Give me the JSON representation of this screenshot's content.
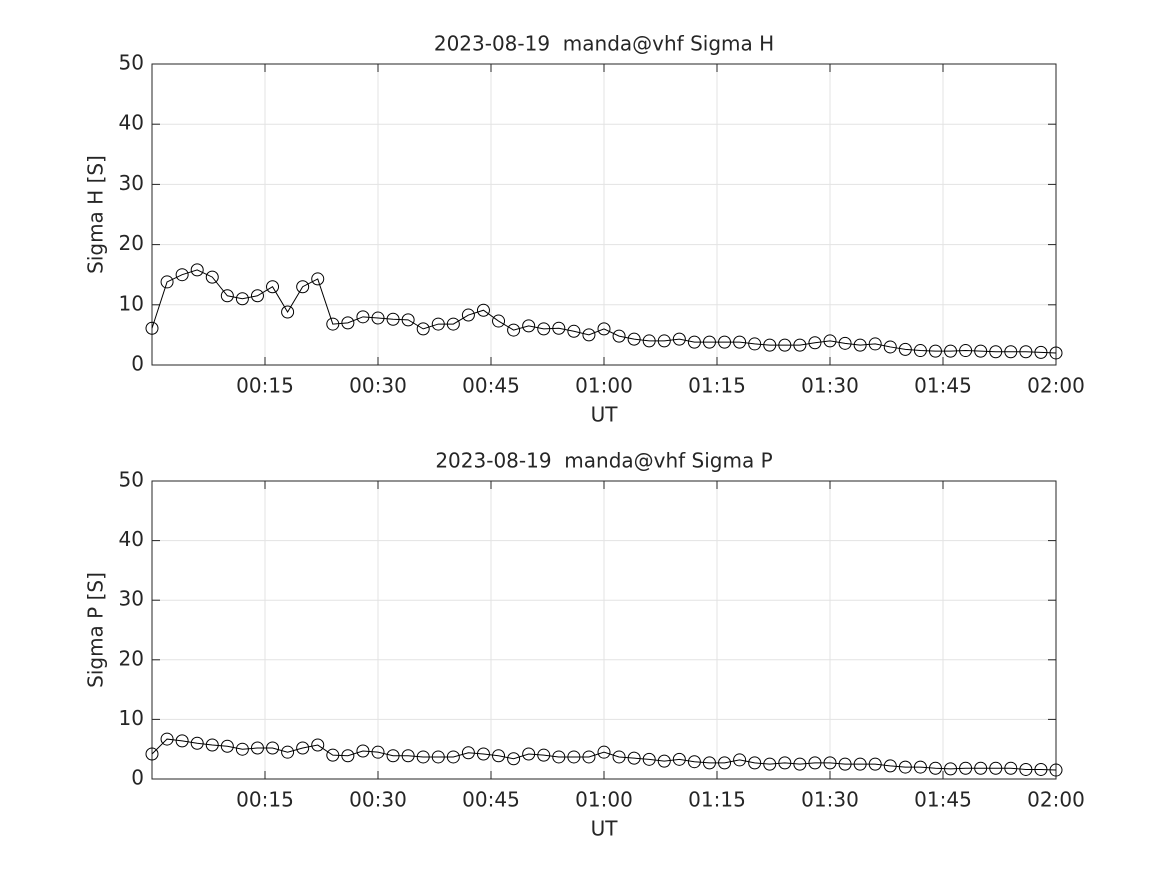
{
  "chart_data": [
    {
      "type": "line",
      "title": "2023-08-19  manda@vhf Sigma H",
      "x_label": "UT",
      "y_label": "Sigma H [S]",
      "color": "#000000",
      "grid": true,
      "x": [
        0,
        2,
        4,
        6,
        8,
        10,
        12,
        14,
        16,
        18,
        20,
        22,
        24,
        26,
        28,
        30,
        32,
        34,
        36,
        38,
        40,
        42,
        44,
        46,
        48,
        50,
        52,
        54,
        56,
        58,
        60,
        62,
        64,
        66,
        68,
        70,
        72,
        74,
        76,
        78,
        80,
        82,
        84,
        86,
        88,
        90,
        92,
        94,
        96,
        98,
        100,
        102,
        104,
        106,
        108,
        110,
        112,
        114,
        116,
        118,
        120
      ],
      "values": [
        6.1,
        13.8,
        15.0,
        15.8,
        14.6,
        11.5,
        11.0,
        11.5,
        13.0,
        8.8,
        13.0,
        14.3,
        6.8,
        7.0,
        8.0,
        7.8,
        7.6,
        7.5,
        6.0,
        6.8,
        6.8,
        8.3,
        9.1,
        7.3,
        5.8,
        6.5,
        6.0,
        6.1,
        5.6,
        5.0,
        6.0,
        4.8,
        4.3,
        4.0,
        4.0,
        4.3,
        3.8,
        3.8,
        3.8,
        3.8,
        3.5,
        3.3,
        3.3,
        3.3,
        3.7,
        4.0,
        3.6,
        3.3,
        3.5,
        3.0,
        2.6,
        2.4,
        2.3,
        2.3,
        2.4,
        2.3,
        2.2,
        2.2,
        2.2,
        2.1,
        2.0
      ],
      "xlim": [
        0,
        120
      ],
      "xticks": [
        {
          "value": 15,
          "label": "00:15"
        },
        {
          "value": 30,
          "label": "00:30"
        },
        {
          "value": 45,
          "label": "00:45"
        },
        {
          "value": 60,
          "label": "01:00"
        },
        {
          "value": 75,
          "label": "01:15"
        },
        {
          "value": 90,
          "label": "01:30"
        },
        {
          "value": 105,
          "label": "01:45"
        },
        {
          "value": 120,
          "label": "02:00"
        }
      ],
      "ylim": [
        0,
        50
      ],
      "yticks": [
        0,
        10,
        20,
        30,
        40,
        50
      ]
    },
    {
      "type": "line",
      "title": "2023-08-19  manda@vhf Sigma P",
      "x_label": "UT",
      "y_label": "Sigma P [S]",
      "color": "#000000",
      "grid": true,
      "x": [
        0,
        2,
        4,
        6,
        8,
        10,
        12,
        14,
        16,
        18,
        20,
        22,
        24,
        26,
        28,
        30,
        32,
        34,
        36,
        38,
        40,
        42,
        44,
        46,
        48,
        50,
        52,
        54,
        56,
        58,
        60,
        62,
        64,
        66,
        68,
        70,
        72,
        74,
        76,
        78,
        80,
        82,
        84,
        86,
        88,
        90,
        92,
        94,
        96,
        98,
        100,
        102,
        104,
        106,
        108,
        110,
        112,
        114,
        116,
        118,
        120
      ],
      "values": [
        4.2,
        6.7,
        6.4,
        6.0,
        5.7,
        5.5,
        5.0,
        5.2,
        5.2,
        4.5,
        5.2,
        5.7,
        4.0,
        3.9,
        4.7,
        4.5,
        3.9,
        3.9,
        3.7,
        3.7,
        3.7,
        4.4,
        4.2,
        3.9,
        3.4,
        4.2,
        4.0,
        3.7,
        3.7,
        3.7,
        4.5,
        3.7,
        3.5,
        3.3,
        3.0,
        3.3,
        2.9,
        2.7,
        2.7,
        3.2,
        2.7,
        2.5,
        2.7,
        2.5,
        2.7,
        2.7,
        2.5,
        2.5,
        2.5,
        2.2,
        2.0,
        2.0,
        1.8,
        1.7,
        1.8,
        1.8,
        1.8,
        1.8,
        1.6,
        1.6,
        1.5
      ],
      "xlim": [
        0,
        120
      ],
      "xticks": [
        {
          "value": 15,
          "label": "00:15"
        },
        {
          "value": 30,
          "label": "00:30"
        },
        {
          "value": 45,
          "label": "00:45"
        },
        {
          "value": 60,
          "label": "01:00"
        },
        {
          "value": 75,
          "label": "01:15"
        },
        {
          "value": 90,
          "label": "01:30"
        },
        {
          "value": 105,
          "label": "01:45"
        },
        {
          "value": 120,
          "label": "02:00"
        }
      ],
      "ylim": [
        0,
        50
      ],
      "yticks": [
        0,
        10,
        20,
        30,
        40,
        50
      ]
    }
  ]
}
